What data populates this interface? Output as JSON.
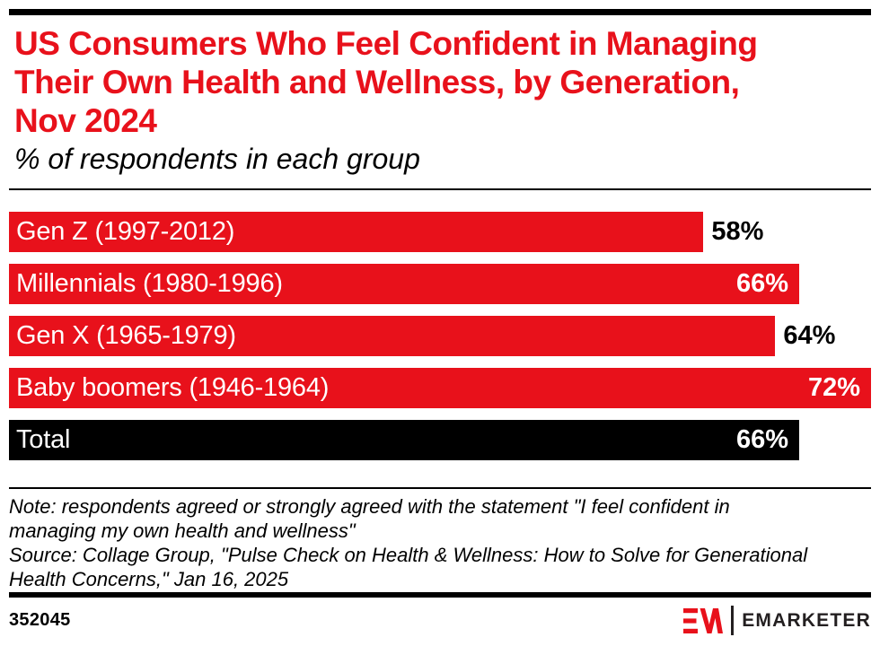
{
  "accent_red": "#e8111b",
  "header": {
    "title": "US Consumers Who Feel Confident in Managing\nTheir Own Health and Wellness, by Generation,\nNov 2024",
    "subtitle": "% of respondents in each group"
  },
  "chart_data": {
    "type": "bar",
    "orientation": "horizontal",
    "title": "US Consumers Who Feel Confident in Managing Their Own Health and Wellness, by Generation, Nov 2024",
    "subtitle": "% of respondents in each group",
    "unit": "%",
    "categories": [
      "Gen Z (1997-2012)",
      "Millennials (1980-1996)",
      "Gen X (1965-1979)",
      "Baby boomers (1946-1964)",
      "Total"
    ],
    "values": [
      58,
      66,
      64,
      72,
      66
    ],
    "value_labels": [
      "58%",
      "66%",
      "64%",
      "72%",
      "66%"
    ],
    "bar_colors": [
      "#e8111b",
      "#e8111b",
      "#e8111b",
      "#e8111b",
      "#000000"
    ],
    "value_label_position": [
      "outside",
      "inside",
      "outside",
      "inside",
      "inside"
    ],
    "xlim": [
      0,
      72
    ],
    "grid": false,
    "legend": false
  },
  "footnote": {
    "note": "Note: respondents agreed or strongly agreed with the statement \"I feel confident in\nmanaging my own health and wellness\"",
    "source": "Source: Collage Group, \"Pulse Check on Health & Wellness: How to Solve for Generational\nHealth Concerns,\" Jan 16, 2025"
  },
  "footer": {
    "chart_id": "352045",
    "logo_mark": "EM",
    "brand": "EMARKETER"
  }
}
